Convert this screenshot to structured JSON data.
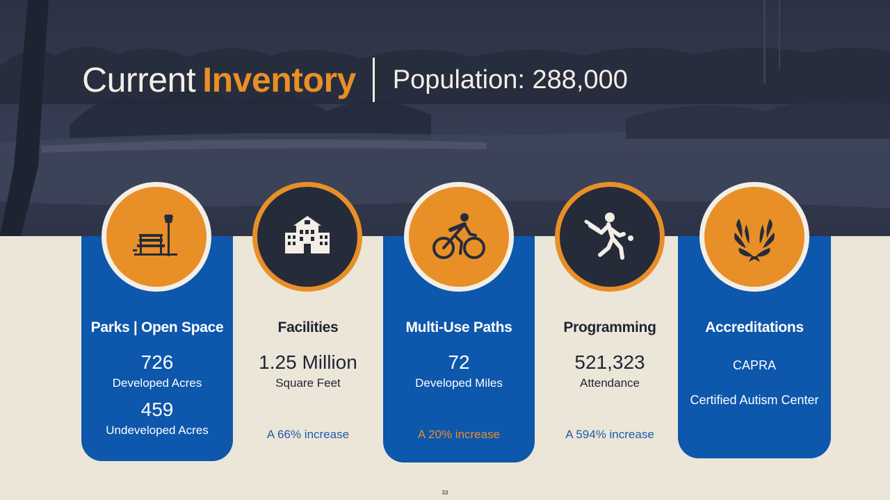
{
  "header": {
    "title_part1": "Current",
    "title_part2": "Inventory",
    "population": "Population: 288,000"
  },
  "cards": [
    {
      "heading": "Parks | Open Space",
      "value1": "726",
      "label1": "Developed Acres",
      "value2": "459",
      "label2": "Undeveloped Acres",
      "icon": "park-bench-icon"
    },
    {
      "heading": "Facilities",
      "value1": "1.25 Million",
      "label1": "Square Feet",
      "increase": "A 66% increase",
      "icon": "building-icon"
    },
    {
      "heading": "Multi-Use Paths",
      "value1": "72",
      "label1": "Developed Miles",
      "increase": "A 20% increase",
      "icon": "cyclist-icon"
    },
    {
      "heading": "Programming",
      "value1": "521,323",
      "label1": "Attendance",
      "increase": "A 594% increase",
      "icon": "cricket-player-icon"
    },
    {
      "heading": "Accreditations",
      "item1": "CAPRA",
      "item2": "Certified Autism Center",
      "icon": "laurel-wreath-icon"
    }
  ],
  "page_number": "33",
  "colors": {
    "navy": "#2C3244",
    "blue": "#0D57AC",
    "orange": "#E88F27",
    "cream": "#ECE6D9"
  }
}
